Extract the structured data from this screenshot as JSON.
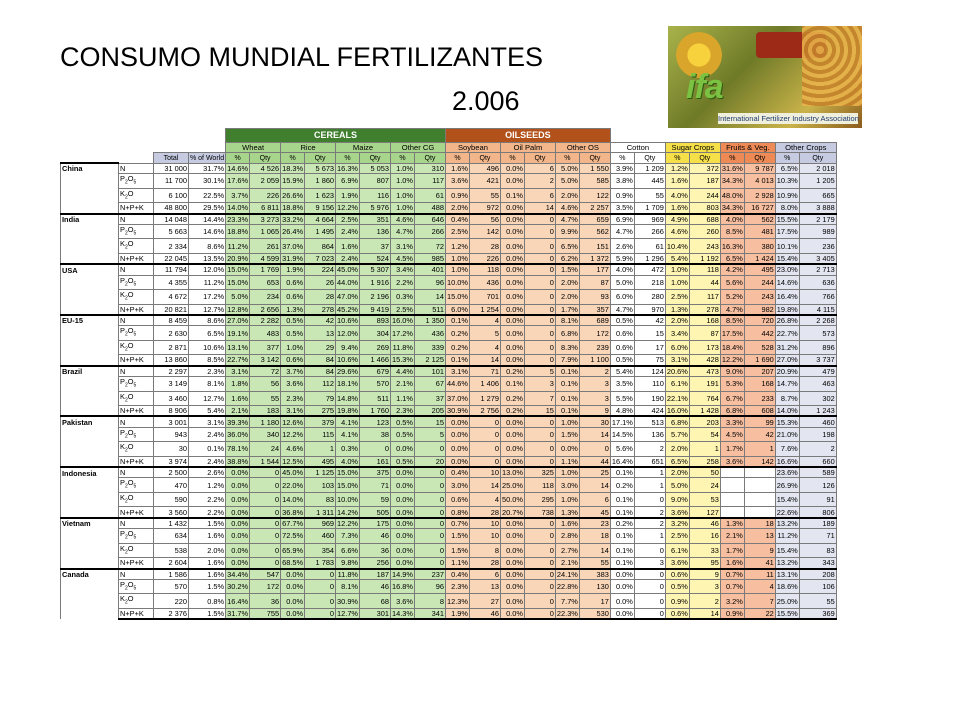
{
  "title": "CONSUMO MUNDIAL FERTILIZANTES",
  "year": "2.006",
  "logo": {
    "brand": "ifa",
    "caption": "International Fertilizer Industry Association"
  },
  "group_headers": {
    "cereals": "CEREALS",
    "oilseeds": "OILSEEDS"
  },
  "crop_headers": [
    "Wheat",
    "Rice",
    "Maize",
    "Other CG",
    "Soybean",
    "Oil Palm",
    "Other OS",
    "Cotton",
    "Sugar Crops",
    "Fruits & Veg.",
    "Other Crops"
  ],
  "sub_headers": [
    "Total",
    "% of World",
    "%",
    "Qty",
    "%",
    "Qty",
    "%",
    "Qty",
    "%",
    "Qty",
    "%",
    "Qty",
    "%",
    "Qty",
    "%",
    "Qty",
    "%",
    "Qty",
    "%",
    "Qty",
    "%",
    "Qty",
    "%",
    "Qty"
  ],
  "nutrients": [
    "N",
    "P2O5",
    "K2O",
    "N+P+K"
  ],
  "nutrient_display": [
    {
      "base": "N",
      "sub": "",
      "tail": ""
    },
    {
      "base": "P",
      "sub": "2",
      "tail": "O",
      "sub2": "5"
    },
    {
      "base": "K",
      "sub": "2",
      "tail": "O",
      "sub2": ""
    },
    {
      "base": "N+P+K",
      "sub": "",
      "tail": ""
    }
  ],
  "colors": {
    "cereals_header": "#3f7f2d",
    "oilseeds_header": "#b3511a",
    "cereals_cell": "#c9e7b5",
    "oilseeds_cell": "#f9d6b8",
    "sugar_cell": "#fff5b2",
    "fruits_cell": "#f7bfa0",
    "other_crops_cell": "#e3e6f1"
  },
  "countries": [
    {
      "name": "China",
      "rows": [
        [
          "31 000",
          "31.7%",
          "14.6%",
          "4 526",
          "18.3%",
          "5 673",
          "16.3%",
          "5 053",
          "1.0%",
          "310",
          "1.6%",
          "496",
          "0.0%",
          "6",
          "5.0%",
          "1 550",
          "3.9%",
          "1 209",
          "1.2%",
          "372",
          "31.6%",
          "9 787",
          "6.5%",
          "2 018"
        ],
        [
          "11 700",
          "30.1%",
          "17.6%",
          "2 059",
          "15.9%",
          "1 860",
          "6.9%",
          "807",
          "1.0%",
          "117",
          "3.6%",
          "421",
          "0.0%",
          "2",
          "5.0%",
          "585",
          "3.8%",
          "445",
          "1.6%",
          "187",
          "34.3%",
          "4 013",
          "10.3%",
          "1 205"
        ],
        [
          "6 100",
          "22.5%",
          "3.7%",
          "226",
          "26.6%",
          "1 623",
          "1.9%",
          "116",
          "1.0%",
          "61",
          "0.9%",
          "55",
          "0.1%",
          "6",
          "2.0%",
          "122",
          "0.9%",
          "55",
          "4.0%",
          "244",
          "48.0%",
          "2 928",
          "10.9%",
          "665"
        ],
        [
          "48 800",
          "29.5%",
          "14.0%",
          "6 811",
          "18.8%",
          "9 156",
          "12.2%",
          "5 976",
          "1.0%",
          "488",
          "2.0%",
          "972",
          "0.0%",
          "14",
          "4.6%",
          "2 257",
          "3.5%",
          "1 709",
          "1.6%",
          "803",
          "34.3%",
          "16 727",
          "8.0%",
          "3 888"
        ]
      ]
    },
    {
      "name": "India",
      "rows": [
        [
          "14 048",
          "14.4%",
          "23.3%",
          "3 273",
          "33.2%",
          "4 664",
          "2.5%",
          "351",
          "4.6%",
          "646",
          "0.4%",
          "56",
          "0.0%",
          "0",
          "4.7%",
          "659",
          "6.9%",
          "969",
          "4.9%",
          "688",
          "4.0%",
          "562",
          "15.5%",
          "2 179"
        ],
        [
          "5 663",
          "14.6%",
          "18.8%",
          "1 065",
          "26.4%",
          "1 495",
          "2.4%",
          "136",
          "4.7%",
          "266",
          "2.5%",
          "142",
          "0.0%",
          "0",
          "9.9%",
          "562",
          "4.7%",
          "266",
          "4.6%",
          "260",
          "8.5%",
          "481",
          "17.5%",
          "989"
        ],
        [
          "2 334",
          "8.6%",
          "11.2%",
          "261",
          "37.0%",
          "864",
          "1.6%",
          "37",
          "3.1%",
          "72",
          "1.2%",
          "28",
          "0.0%",
          "0",
          "6.5%",
          "151",
          "2.6%",
          "61",
          "10.4%",
          "243",
          "16.3%",
          "380",
          "10.1%",
          "236"
        ],
        [
          "22 045",
          "13.5%",
          "20.9%",
          "4 599",
          "31.9%",
          "7 023",
          "2.4%",
          "524",
          "4.5%",
          "985",
          "1.0%",
          "226",
          "0.0%",
          "0",
          "6.2%",
          "1 372",
          "5.9%",
          "1 296",
          "5.4%",
          "1 192",
          "6.5%",
          "1 424",
          "15.4%",
          "3 405"
        ]
      ]
    },
    {
      "name": "USA",
      "rows": [
        [
          "11 794",
          "12.0%",
          "15.0%",
          "1 769",
          "1.9%",
          "224",
          "45.0%",
          "5 307",
          "3.4%",
          "401",
          "1.0%",
          "118",
          "0.0%",
          "0",
          "1.5%",
          "177",
          "4.0%",
          "472",
          "1.0%",
          "118",
          "4.2%",
          "495",
          "23.0%",
          "2 713"
        ],
        [
          "4 355",
          "11.2%",
          "15.0%",
          "653",
          "0.6%",
          "26",
          "44.0%",
          "1 916",
          "2.2%",
          "96",
          "10.0%",
          "436",
          "0.0%",
          "0",
          "2.0%",
          "87",
          "5.0%",
          "218",
          "1.0%",
          "44",
          "5.6%",
          "244",
          "14.6%",
          "636"
        ],
        [
          "4 672",
          "17.2%",
          "5.0%",
          "234",
          "0.6%",
          "28",
          "47.0%",
          "2 196",
          "0.3%",
          "14",
          "15.0%",
          "701",
          "0.0%",
          "0",
          "2.0%",
          "93",
          "6.0%",
          "280",
          "2.5%",
          "117",
          "5.2%",
          "243",
          "16.4%",
          "766"
        ],
        [
          "20 821",
          "12.7%",
          "12.8%",
          "2 656",
          "1.3%",
          "278",
          "45.2%",
          "9 419",
          "2.5%",
          "511",
          "6.0%",
          "1 254",
          "0.0%",
          "0",
          "1.7%",
          "357",
          "4.7%",
          "970",
          "1.3%",
          "278",
          "4.7%",
          "982",
          "19.8%",
          "4 115"
        ]
      ]
    },
    {
      "name": "EU-15",
      "rows": [
        [
          "8 459",
          "8.6%",
          "27.0%",
          "2 282",
          "0.5%",
          "42",
          "10.6%",
          "893",
          "16.0%",
          "1 350",
          "0.1%",
          "4",
          "0.0%",
          "0",
          "8.1%",
          "689",
          "0.5%",
          "42",
          "2.0%",
          "168",
          "8.5%",
          "720",
          "26.8%",
          "2 268"
        ],
        [
          "2 630",
          "6.5%",
          "19.1%",
          "483",
          "0.5%",
          "13",
          "12.0%",
          "304",
          "17.2%",
          "436",
          "0.2%",
          "5",
          "0.0%",
          "0",
          "6.8%",
          "172",
          "0.6%",
          "15",
          "3.4%",
          "87",
          "17.5%",
          "442",
          "22.7%",
          "573"
        ],
        [
          "2 871",
          "10.6%",
          "13.1%",
          "377",
          "1.0%",
          "29",
          "9.4%",
          "269",
          "11.8%",
          "339",
          "0.2%",
          "4",
          "0.0%",
          "0",
          "8.3%",
          "239",
          "0.6%",
          "17",
          "6.0%",
          "173",
          "18.4%",
          "528",
          "31.2%",
          "896"
        ],
        [
          "13 860",
          "8.5%",
          "22.7%",
          "3 142",
          "0.6%",
          "84",
          "10.6%",
          "1 466",
          "15.3%",
          "2 125",
          "0.1%",
          "14",
          "0.0%",
          "0",
          "7.9%",
          "1 100",
          "0.5%",
          "75",
          "3.1%",
          "428",
          "12.2%",
          "1 690",
          "27.0%",
          "3 737"
        ]
      ]
    },
    {
      "name": "Brazil",
      "rows": [
        [
          "2 297",
          "2.3%",
          "3.1%",
          "72",
          "3.7%",
          "84",
          "29.6%",
          "679",
          "4.4%",
          "101",
          "3.1%",
          "71",
          "0.2%",
          "5",
          "0.1%",
          "2",
          "5.4%",
          "124",
          "20.6%",
          "473",
          "9.0%",
          "207",
          "20.9%",
          "479"
        ],
        [
          "3 149",
          "8.1%",
          "1.8%",
          "56",
          "3.6%",
          "112",
          "18.1%",
          "570",
          "2.1%",
          "67",
          "44.6%",
          "1 406",
          "0.1%",
          "3",
          "0.1%",
          "3",
          "3.5%",
          "110",
          "6.1%",
          "191",
          "5.3%",
          "168",
          "14.7%",
          "463"
        ],
        [
          "3 460",
          "12.7%",
          "1.6%",
          "55",
          "2.3%",
          "79",
          "14.8%",
          "511",
          "1.1%",
          "37",
          "37.0%",
          "1 279",
          "0.2%",
          "7",
          "0.1%",
          "3",
          "5.5%",
          "190",
          "22.1%",
          "764",
          "6.7%",
          "233",
          "8.7%",
          "302"
        ],
        [
          "8 906",
          "5.4%",
          "2.1%",
          "183",
          "3.1%",
          "275",
          "19.8%",
          "1 760",
          "2.3%",
          "205",
          "30.9%",
          "2 756",
          "0.2%",
          "15",
          "0.1%",
          "9",
          "4.8%",
          "424",
          "16.0%",
          "1 428",
          "6.8%",
          "608",
          "14.0%",
          "1 243"
        ]
      ]
    },
    {
      "name": "Pakistan",
      "rows": [
        [
          "3 001",
          "3.1%",
          "39.3%",
          "1 180",
          "12.6%",
          "379",
          "4.1%",
          "123",
          "0.5%",
          "15",
          "0.0%",
          "0",
          "0.0%",
          "0",
          "1.0%",
          "30",
          "17.1%",
          "513",
          "6.8%",
          "203",
          "3.3%",
          "99",
          "15.3%",
          "460"
        ],
        [
          "943",
          "2.4%",
          "36.0%",
          "340",
          "12.2%",
          "115",
          "4.1%",
          "38",
          "0.5%",
          "5",
          "0.0%",
          "0",
          "0.0%",
          "0",
          "1.5%",
          "14",
          "14.5%",
          "136",
          "5.7%",
          "54",
          "4.5%",
          "42",
          "21.0%",
          "198"
        ],
        [
          "30",
          "0.1%",
          "78.1%",
          "24",
          "4.6%",
          "1",
          "0.3%",
          "0",
          "0.0%",
          "0",
          "0.0%",
          "0",
          "0.0%",
          "0",
          "0.0%",
          "0",
          "5.6%",
          "2",
          "2.0%",
          "1",
          "1.7%",
          "1",
          "7.6%",
          "2"
        ],
        [
          "3 974",
          "2.4%",
          "38.8%",
          "1 544",
          "12.5%",
          "495",
          "4.0%",
          "161",
          "0.5%",
          "20",
          "0.0%",
          "0",
          "0.0%",
          "0",
          "1.1%",
          "44",
          "16.4%",
          "651",
          "6.5%",
          "258",
          "3.6%",
          "142",
          "16.6%",
          "660"
        ]
      ]
    },
    {
      "name": "Indonesia",
      "rows": [
        [
          "2 500",
          "2.6%",
          "0.0%",
          "0",
          "45.0%",
          "1 125",
          "15.0%",
          "375",
          "0.0%",
          "0",
          "0.4%",
          "10",
          "13.0%",
          "325",
          "1.0%",
          "25",
          "0.1%",
          "1",
          "2.0%",
          "50",
          "",
          "",
          "23.6%",
          "589"
        ],
        [
          "470",
          "1.2%",
          "0.0%",
          "0",
          "22.0%",
          "103",
          "15.0%",
          "71",
          "0.0%",
          "0",
          "3.0%",
          "14",
          "25.0%",
          "118",
          "3.0%",
          "14",
          "0.2%",
          "1",
          "5.0%",
          "24",
          "",
          "",
          "26.9%",
          "126"
        ],
        [
          "590",
          "2.2%",
          "0.0%",
          "0",
          "14.0%",
          "83",
          "10.0%",
          "59",
          "0.0%",
          "0",
          "0.6%",
          "4",
          "50.0%",
          "295",
          "1.0%",
          "6",
          "0.1%",
          "0",
          "9.0%",
          "53",
          "",
          "",
          "15.4%",
          "91"
        ],
        [
          "3 560",
          "2.2%",
          "0.0%",
          "0",
          "36.8%",
          "1 311",
          "14.2%",
          "505",
          "0.0%",
          "0",
          "0.8%",
          "28",
          "20.7%",
          "738",
          "1.3%",
          "45",
          "0.1%",
          "2",
          "3.6%",
          "127",
          "",
          "",
          "22.6%",
          "806"
        ]
      ]
    },
    {
      "name": "Vietnam",
      "rows": [
        [
          "1 432",
          "1.5%",
          "0.0%",
          "0",
          "67.7%",
          "969",
          "12.2%",
          "175",
          "0.0%",
          "0",
          "0.7%",
          "10",
          "0.0%",
          "0",
          "1.6%",
          "23",
          "0.2%",
          "2",
          "3.2%",
          "46",
          "1.3%",
          "18",
          "13.2%",
          "189"
        ],
        [
          "634",
          "1.6%",
          "0.0%",
          "0",
          "72.5%",
          "460",
          "7.3%",
          "46",
          "0.0%",
          "0",
          "1.5%",
          "10",
          "0.0%",
          "0",
          "2.8%",
          "18",
          "0.1%",
          "1",
          "2.5%",
          "16",
          "2.1%",
          "13",
          "11.2%",
          "71"
        ],
        [
          "538",
          "2.0%",
          "0.0%",
          "0",
          "65.9%",
          "354",
          "6.6%",
          "36",
          "0.0%",
          "0",
          "1.5%",
          "8",
          "0.0%",
          "0",
          "2.7%",
          "14",
          "0.1%",
          "0",
          "6.1%",
          "33",
          "1.7%",
          "9",
          "15.4%",
          "83"
        ],
        [
          "2 604",
          "1.6%",
          "0.0%",
          "0",
          "68.5%",
          "1 783",
          "9.8%",
          "256",
          "0.0%",
          "0",
          "1.1%",
          "28",
          "0.0%",
          "0",
          "2.1%",
          "55",
          "0.1%",
          "3",
          "3.6%",
          "95",
          "1.6%",
          "41",
          "13.2%",
          "343"
        ]
      ]
    },
    {
      "name": "Canada",
      "rows": [
        [
          "1 586",
          "1.6%",
          "34.4%",
          "547",
          "0.0%",
          "0",
          "11.8%",
          "187",
          "14.9%",
          "237",
          "0.4%",
          "6",
          "0.0%",
          "0",
          "24.1%",
          "383",
          "0.0%",
          "0",
          "0.6%",
          "9",
          "0.7%",
          "11",
          "13.1%",
          "208"
        ],
        [
          "570",
          "1.5%",
          "30.2%",
          "172",
          "0.0%",
          "0",
          "8.1%",
          "46",
          "16.8%",
          "96",
          "2.3%",
          "13",
          "0.0%",
          "0",
          "22.8%",
          "130",
          "0.0%",
          "0",
          "0.5%",
          "3",
          "0.7%",
          "4",
          "18.6%",
          "106"
        ],
        [
          "220",
          "0.8%",
          "16.4%",
          "36",
          "0.0%",
          "0",
          "30.9%",
          "68",
          "3.6%",
          "8",
          "12.3%",
          "27",
          "0.0%",
          "0",
          "7.7%",
          "17",
          "0.0%",
          "0",
          "0.9%",
          "2",
          "3.2%",
          "7",
          "25.0%",
          "55"
        ],
        [
          "2 376",
          "1.5%",
          "31.7%",
          "755",
          "0.0%",
          "0",
          "12.7%",
          "301",
          "14.3%",
          "341",
          "1.9%",
          "46",
          "0.0%",
          "0",
          "22.3%",
          "530",
          "0.0%",
          "0",
          "0.6%",
          "14",
          "0.9%",
          "22",
          "15.5%",
          "369"
        ]
      ]
    }
  ]
}
